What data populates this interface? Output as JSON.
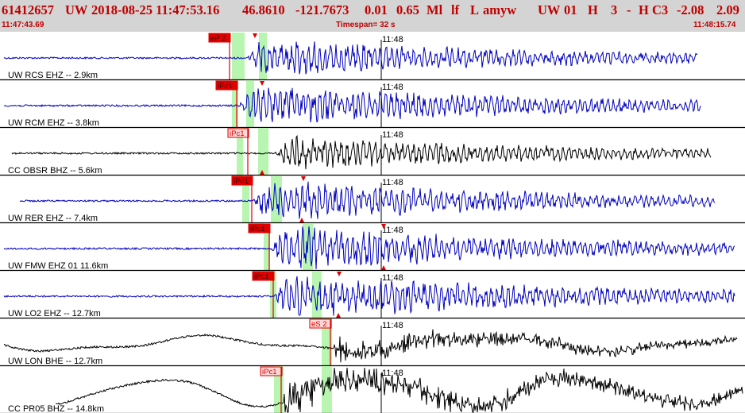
{
  "header": {
    "event_id": "61412657",
    "network": "UW",
    "datetime": "2018-08-25 11:47:53.16",
    "lat": "46.8610",
    "lon": "-121.7673",
    "depth": "0.01",
    "magnitude": "0.65",
    "mag_type": "Ml",
    "flag1": "lf",
    "flag2": "L",
    "analyst": "amyw",
    "source": "UW",
    "version": "01",
    "quality": "H",
    "count": "3",
    "dash": "-",
    "type": "H C3",
    "val1": "-2.08",
    "val2": "2.09",
    "start_time": "11:47:43.69",
    "timespan": "Timespan=  32 s",
    "end_time": "11:48:15.74"
  },
  "colors": {
    "header_text": "#c00000",
    "header_bg": "#d4d4d4",
    "pick_red": "#e00000",
    "pick_fill": "#ffd6d6",
    "green_window": "#b8f5b0",
    "trace_blue": "#0000c0",
    "trace_black": "#000000"
  },
  "minute_label": "11:48",
  "panels": [
    {
      "station": "UW RCS EHZ -- 2.9km",
      "color": "blue",
      "pick": "eP 2",
      "pick_style": "solid"
    },
    {
      "station": "UW RCM EHZ -- 3.8km",
      "color": "blue",
      "pick": "iPc1",
      "pick_style": "solid"
    },
    {
      "station": "CC OBSR BHZ -- 5.6km",
      "color": "black",
      "pick": "iPc1",
      "pick_style": "outline"
    },
    {
      "station": "UW RER EHZ -- 7.4km",
      "color": "blue",
      "pick": "iPd1",
      "pick_style": "solid"
    },
    {
      "station": "UW FMW EHZ 01 11.6km",
      "color": "blue",
      "pick": "iPc1",
      "pick_style": "solid"
    },
    {
      "station": "UW LO2 EHZ -- 12.7km",
      "color": "blue",
      "pick": "iPc1",
      "pick_style": "solid"
    },
    {
      "station": "UW LON BHE -- 12.7km",
      "color": "black",
      "pick": "eS 2",
      "pick_style": "outline"
    },
    {
      "station": "CC PR05 BHZ -- 14.8km",
      "color": "black",
      "pick": "iPc1",
      "pick_style": "outline"
    }
  ]
}
